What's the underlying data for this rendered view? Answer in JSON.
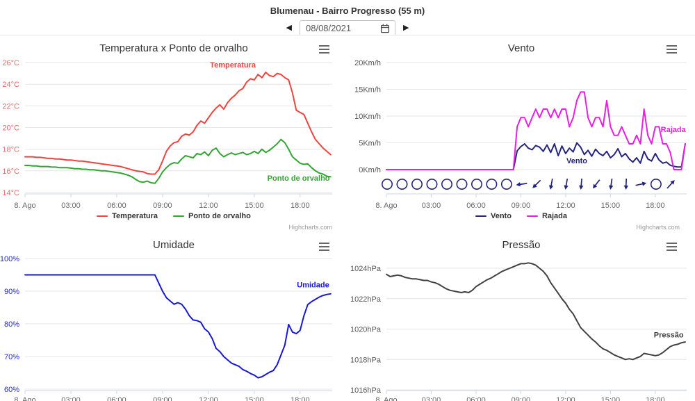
{
  "page": {
    "title": "Blumenau - Bairro Progresso (55 m)"
  },
  "date_nav": {
    "value": "08/08/2021",
    "prev_icon": "◀",
    "next_icon": "▶"
  },
  "colors": {
    "grid": "#e6e6e6",
    "axis_line": "#ccd6eb",
    "x_label": "#666666",
    "legend_label": "#333333",
    "title": "#333333",
    "credits": "#999999"
  },
  "chart_data": [
    {
      "id": "temp",
      "type": "line",
      "title": "Temperatura x Ponto de orvalho",
      "x_axis": {
        "start_hour": 0,
        "interval_hours": 0.25,
        "max_hours": 20.1,
        "tick_hours": [
          0,
          3,
          6,
          9,
          12,
          15,
          18
        ],
        "tick_labels": [
          "8. Ago",
          "03:00",
          "06:00",
          "09:00",
          "12:00",
          "15:00",
          "18:00"
        ]
      },
      "y_axis": {
        "min": 14,
        "max": 26,
        "step": 2,
        "unit": "°C",
        "label_color": "#e06c6c"
      },
      "series": [
        {
          "name": "Temperatura",
          "color": "#f2423e",
          "label_at": {
            "x_h": 13.6,
            "y": 25.55
          },
          "values": [
            17.3,
            17.3,
            17.3,
            17.25,
            17.25,
            17.2,
            17.15,
            17.15,
            17.1,
            17.1,
            17.05,
            17.0,
            17.0,
            16.95,
            16.9,
            16.9,
            16.85,
            16.8,
            16.75,
            16.7,
            16.65,
            16.6,
            16.55,
            16.5,
            16.45,
            16.4,
            16.3,
            16.2,
            16.1,
            16.0,
            15.95,
            15.9,
            15.75,
            15.7,
            15.7,
            16.1,
            16.9,
            17.8,
            18.3,
            18.6,
            18.7,
            19.2,
            19.4,
            19.3,
            19.6,
            20.2,
            20.6,
            20.4,
            20.9,
            21.4,
            21.8,
            22.1,
            21.7,
            22.3,
            22.7,
            23.0,
            23.4,
            23.6,
            24.2,
            24.5,
            24.4,
            24.9,
            24.6,
            25.1,
            24.8,
            24.7,
            25.0,
            24.9,
            24.6,
            24.4,
            23.2,
            21.6,
            21.4,
            21.2,
            20.4,
            19.6,
            18.9,
            18.5,
            18.1,
            17.8,
            17.5
          ]
        },
        {
          "name": "Ponto de orvalho",
          "color": "#32a532",
          "label_at": {
            "x_h": 17.9,
            "y": 15.1
          },
          "values": [
            16.5,
            16.5,
            16.45,
            16.45,
            16.4,
            16.4,
            16.4,
            16.35,
            16.35,
            16.3,
            16.3,
            16.3,
            16.25,
            16.2,
            16.2,
            16.15,
            16.15,
            16.1,
            16.1,
            16.05,
            16.0,
            16.0,
            15.95,
            15.9,
            15.85,
            15.8,
            15.7,
            15.6,
            15.45,
            15.2,
            15.0,
            14.95,
            15.05,
            14.9,
            14.85,
            15.3,
            15.9,
            16.3,
            16.6,
            16.75,
            16.7,
            17.1,
            17.4,
            17.3,
            17.2,
            17.6,
            17.5,
            17.75,
            17.4,
            17.9,
            18.1,
            17.6,
            17.3,
            17.5,
            17.65,
            17.5,
            17.6,
            17.7,
            17.5,
            17.6,
            17.8,
            17.6,
            18.0,
            17.7,
            17.9,
            18.2,
            18.5,
            18.9,
            18.6,
            18.0,
            17.3,
            17.0,
            16.7,
            16.6,
            16.65,
            16.3,
            16.0,
            15.8,
            15.7,
            15.5,
            15.45
          ]
        }
      ],
      "legend": {
        "items": [
          "Temperatura",
          "Ponto de orvalho"
        ]
      },
      "credits": "Highcharts.com"
    },
    {
      "id": "vento",
      "type": "line",
      "title": "Vento",
      "x_axis": {
        "start_hour": 0,
        "interval_hours": 0.25,
        "max_hours": 20.1,
        "tick_hours": [
          0,
          3,
          6,
          9,
          12,
          15,
          18
        ],
        "tick_labels": [
          "8. Ago",
          "03:00",
          "06:00",
          "09:00",
          "12:00",
          "15:00",
          "18:00"
        ]
      },
      "y_axis": {
        "min": 0,
        "max": 20,
        "step": 5,
        "unit": "Km/h",
        "label_color": "#555555"
      },
      "series": [
        {
          "name": "Vento",
          "color": "#24247e",
          "label_at": {
            "x_h": 12.75,
            "y": 1.2
          },
          "values": [
            0,
            0,
            0,
            0,
            0,
            0,
            0,
            0,
            0,
            0,
            0,
            0,
            0,
            0,
            0,
            0,
            0,
            0,
            0,
            0,
            0,
            0,
            0,
            0,
            0,
            0,
            0,
            0,
            0,
            0,
            0,
            0,
            0,
            0,
            0,
            3.5,
            4.3,
            4.8,
            4.0,
            3.7,
            4.5,
            4.2,
            3.4,
            4.6,
            3.2,
            4.8,
            2.6,
            4.4,
            3.0,
            4.0,
            3.3,
            5.0,
            4.2,
            2.8,
            3.6,
            2.5,
            3.8,
            3.0,
            2.6,
            3.4,
            2.2,
            2.8,
            3.9,
            2.4,
            3.0,
            2.0,
            1.4,
            2.2,
            1.2,
            3.4,
            2.0,
            1.6,
            3.0,
            1.8,
            1.2,
            1.4,
            0.8,
            0.6,
            0.5,
            0.5,
            4.8
          ]
        },
        {
          "name": "Rajada",
          "color": "#e91ee3",
          "label_at": {
            "x_h": 19.2,
            "y": 7.0
          },
          "values": [
            0,
            0,
            0,
            0,
            0,
            0,
            0,
            0,
            0,
            0,
            0,
            0,
            0,
            0,
            0,
            0,
            0,
            0,
            0,
            0,
            0,
            0,
            0,
            0,
            0,
            0,
            0,
            0,
            0,
            0,
            0,
            0,
            0,
            0,
            0,
            8.0,
            9.7,
            9.7,
            8.0,
            9.7,
            11.3,
            9.7,
            11.3,
            11.3,
            9.7,
            11.3,
            9.7,
            11.3,
            11.3,
            8.0,
            9.7,
            12.9,
            14.5,
            14.5,
            9.7,
            8.0,
            9.7,
            9.7,
            8.0,
            12.9,
            8.0,
            6.4,
            6.4,
            8.0,
            6.4,
            4.8,
            4.8,
            6.4,
            4.8,
            11.3,
            6.4,
            4.8,
            8.0,
            8.0,
            4.8,
            4.8,
            3.2,
            0,
            0,
            0,
            4.8
          ]
        }
      ],
      "wind_markers": {
        "start_hour": 0,
        "interval_hours": 1,
        "items": [
          "c",
          "c",
          "c",
          "c",
          "c",
          "c",
          "c",
          "c",
          "c",
          262,
          225,
          190,
          190,
          185,
          218,
          188,
          182,
          78,
          "c",
          42
        ]
      },
      "legend": {
        "items": [
          "Vento",
          "Rajada"
        ]
      },
      "credits": "Highcharts.com"
    },
    {
      "id": "umidade",
      "type": "line",
      "title": "Umidade",
      "x_axis": {
        "start_hour": 0,
        "interval_hours": 0.25,
        "max_hours": 20.1,
        "tick_hours": [
          0,
          3,
          6,
          9,
          12,
          15,
          18
        ],
        "tick_labels": [
          "8. Ago",
          "03:00",
          "06:00",
          "09:00",
          "12:00",
          "15:00",
          "18:00"
        ]
      },
      "y_axis": {
        "min": 60,
        "max": 100,
        "step": 10,
        "unit": "%",
        "label_color": "#2222dd"
      },
      "series": [
        {
          "name": "Umidade",
          "color": "#1717d6",
          "label_at": {
            "x_h": 18.85,
            "y": 91.2
          },
          "values": [
            95,
            95,
            95,
            95,
            95,
            95,
            95,
            95,
            95,
            95,
            95,
            95,
            95,
            95,
            95,
            95,
            95,
            95,
            95,
            95,
            95,
            95,
            95,
            95,
            95,
            95,
            95,
            95,
            95,
            95,
            95,
            95,
            95,
            95,
            95,
            92.5,
            90,
            88,
            87,
            86,
            86.5,
            86,
            84.5,
            82.5,
            81.2,
            81,
            80.5,
            78.5,
            77.5,
            75.5,
            72.5,
            71.5,
            70,
            69,
            68,
            67.5,
            67,
            66,
            65.5,
            64.8,
            64.3,
            63.5,
            63.8,
            64.5,
            65.2,
            65.7,
            67.5,
            70.5,
            73.5,
            79.8,
            77.5,
            77,
            78,
            82.5,
            85.9,
            86.8,
            87.5,
            88.2,
            88.7,
            89,
            89.2
          ]
        }
      ]
    },
    {
      "id": "pressao",
      "type": "line",
      "title": "Pressão",
      "x_axis": {
        "start_hour": 0,
        "interval_hours": 0.25,
        "max_hours": 20.1,
        "tick_hours": [
          0,
          3,
          6,
          9,
          12,
          15,
          18
        ],
        "tick_labels": [
          "8. Ago",
          "03:00",
          "06:00",
          "09:00",
          "12:00",
          "15:00",
          "18:00"
        ]
      },
      "y_axis": {
        "min": 1016,
        "max": 1024,
        "step": 2,
        "unit": "hPa",
        "label_color": "#555555"
      },
      "series": [
        {
          "name": "Pressão",
          "color": "#404040",
          "label_at": {
            "x_h": 18.9,
            "y": 1019.45
          },
          "values": [
            1023.6,
            1023.45,
            1023.5,
            1023.55,
            1023.5,
            1023.4,
            1023.35,
            1023.3,
            1023.3,
            1023.25,
            1023.2,
            1023.2,
            1023.1,
            1023.05,
            1022.95,
            1022.8,
            1022.65,
            1022.55,
            1022.5,
            1022.45,
            1022.4,
            1022.45,
            1022.4,
            1022.55,
            1022.8,
            1022.95,
            1023.1,
            1023.25,
            1023.35,
            1023.5,
            1023.65,
            1023.8,
            1023.9,
            1024.0,
            1024.1,
            1024.2,
            1024.3,
            1024.3,
            1024.35,
            1024.3,
            1024.2,
            1024.0,
            1023.8,
            1023.5,
            1023.05,
            1022.7,
            1022.35,
            1022.0,
            1021.7,
            1021.3,
            1021.0,
            1020.55,
            1020.1,
            1019.85,
            1019.6,
            1019.35,
            1019.15,
            1018.9,
            1018.7,
            1018.6,
            1018.45,
            1018.3,
            1018.2,
            1018.1,
            1018.0,
            1018.05,
            1018.0,
            1018.1,
            1018.2,
            1018.4,
            1018.35,
            1018.3,
            1018.25,
            1018.3,
            1018.45,
            1018.65,
            1018.85,
            1018.95,
            1019.0,
            1019.1,
            1019.15
          ]
        }
      ]
    }
  ]
}
